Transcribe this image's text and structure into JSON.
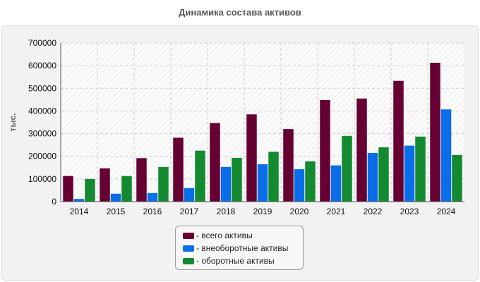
{
  "chart_data": {
    "type": "bar",
    "title": "Динамика состава активов",
    "xlabel": "",
    "ylabel": "тыс.",
    "ylim": [
      0,
      700000
    ],
    "yticks": [
      0,
      100000,
      200000,
      300000,
      400000,
      500000,
      600000,
      700000
    ],
    "ytick_labels": [
      "0",
      "100000",
      "200000",
      "300000",
      "400000",
      "500000",
      "600000",
      "700000"
    ],
    "categories": [
      "2014",
      "2015",
      "2016",
      "2017",
      "2018",
      "2019",
      "2020",
      "2021",
      "2022",
      "2023",
      "2024"
    ],
    "series": [
      {
        "name": "- всего активы",
        "color": "#660033",
        "values": [
          113000,
          147000,
          192000,
          282000,
          347000,
          385000,
          320000,
          448000,
          455000,
          533000,
          613000
        ]
      },
      {
        "name": "- внеоборотные активы",
        "color": "#0a6ee8",
        "values": [
          12000,
          35000,
          38000,
          60000,
          153000,
          165000,
          143000,
          160000,
          215000,
          247000,
          407000
        ]
      },
      {
        "name": "- оборотные активы",
        "color": "#138a30",
        "values": [
          100000,
          113000,
          153000,
          225000,
          193000,
          220000,
          178000,
          290000,
          240000,
          287000,
          206000
        ]
      }
    ],
    "grid": true,
    "legend_position": "bottom-center"
  }
}
